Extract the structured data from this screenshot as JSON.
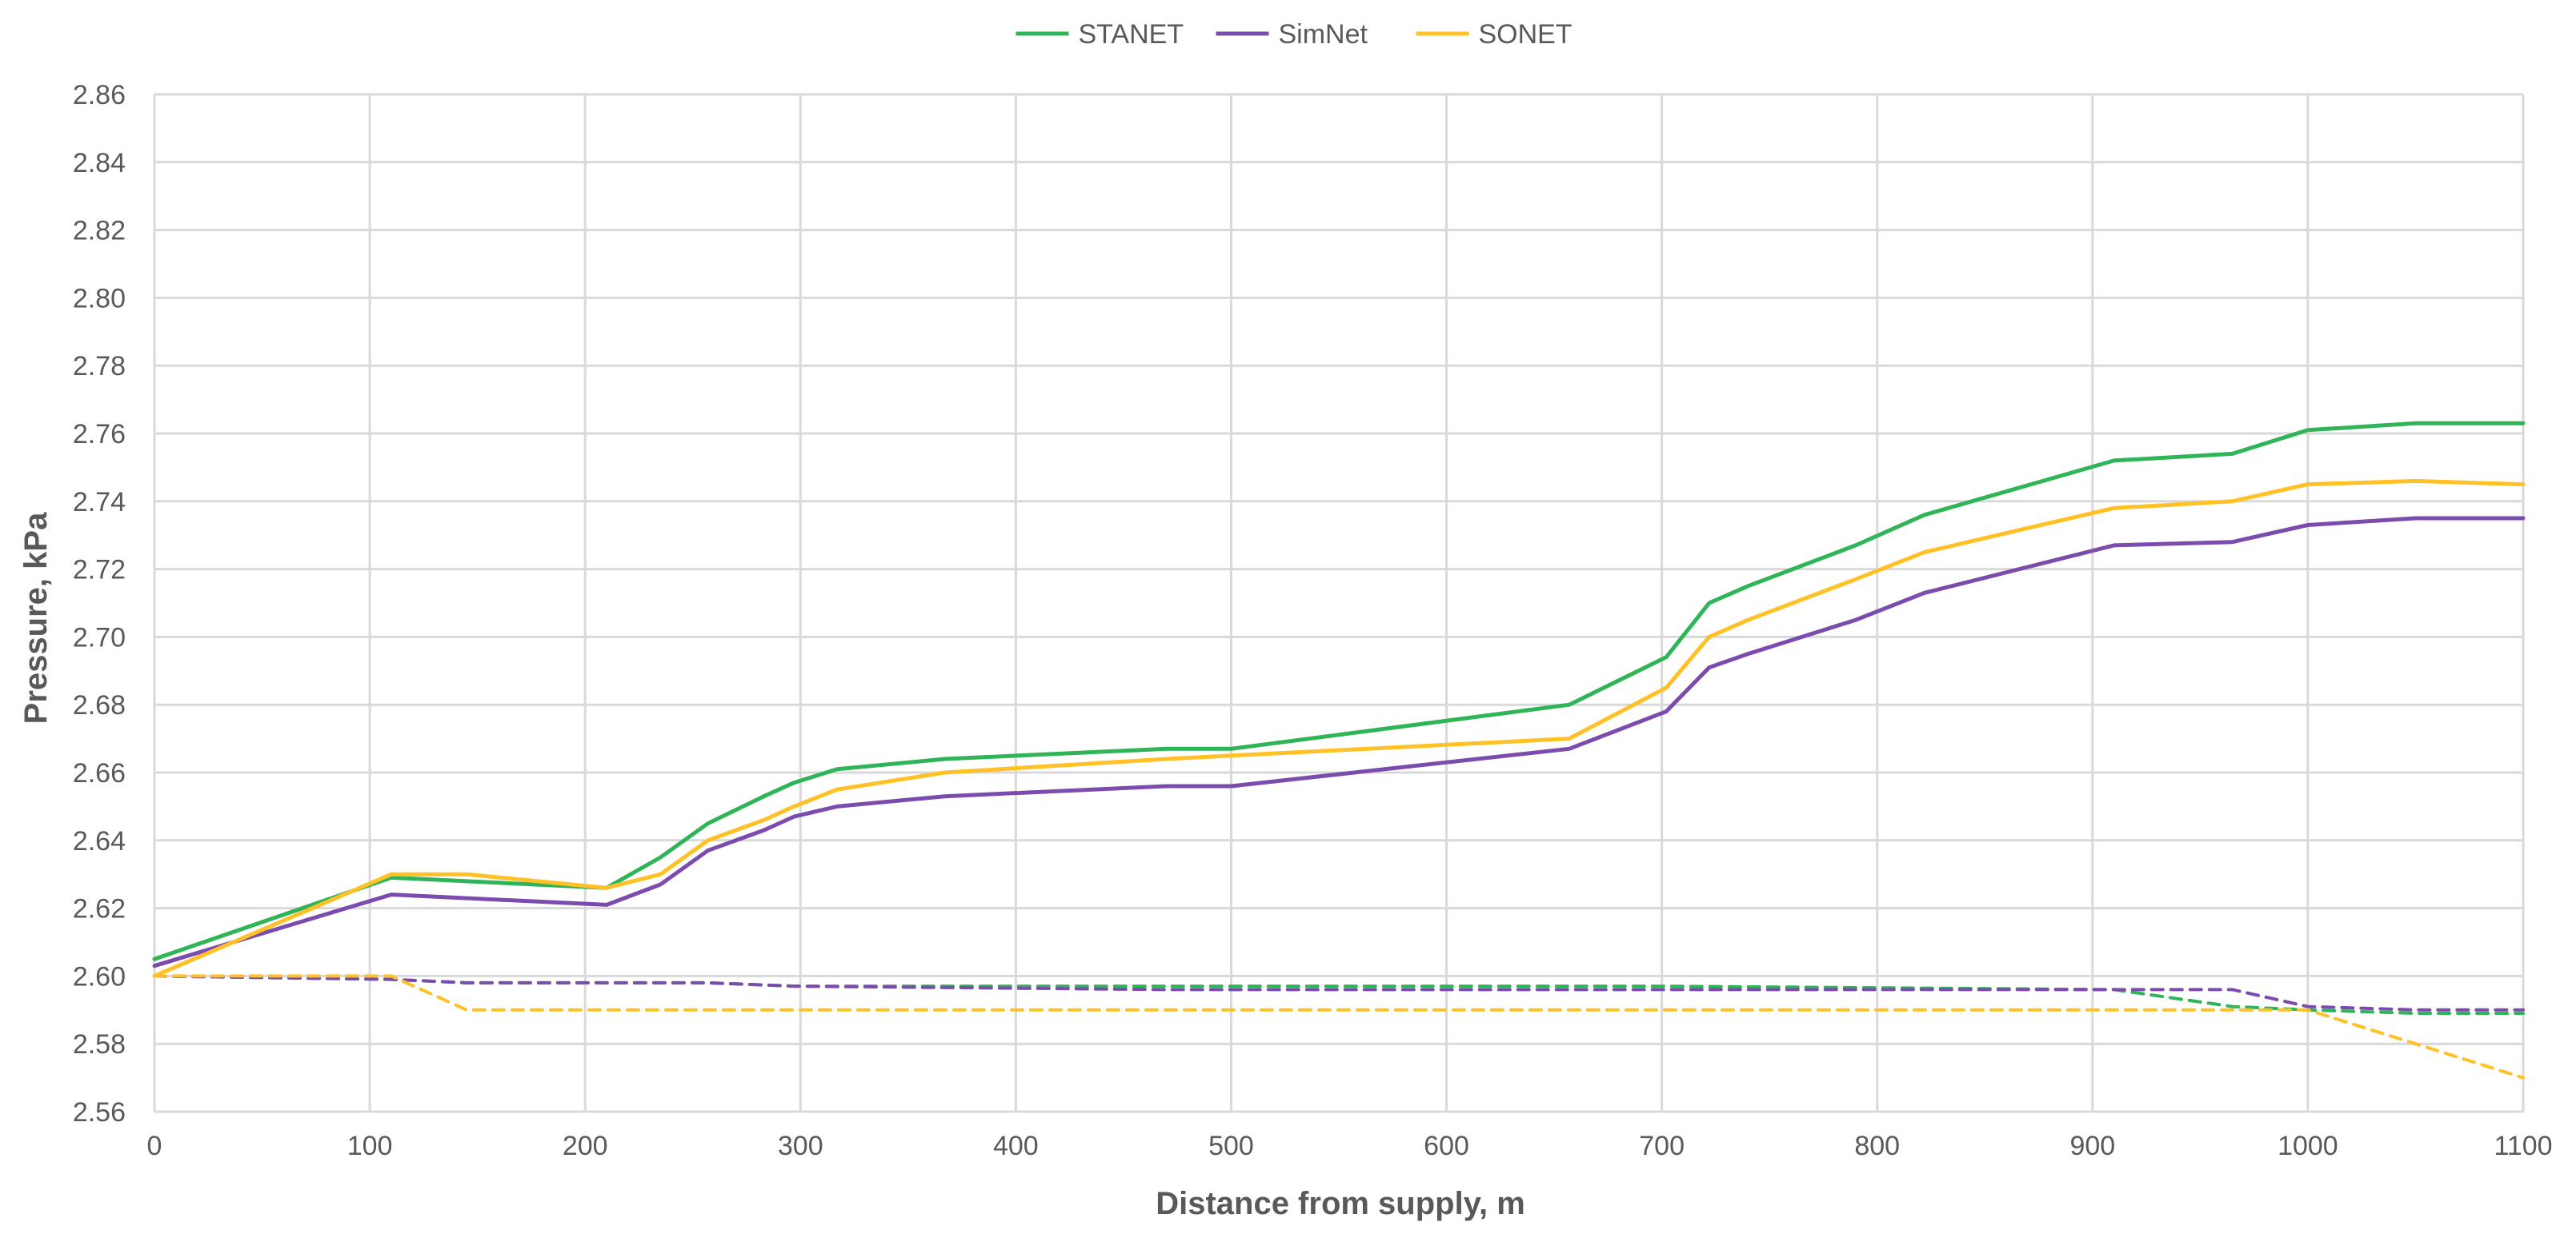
{
  "chart_data": {
    "type": "line",
    "title": "",
    "xlabel": "Distance from supply, m",
    "ylabel": "Pressure, kPa",
    "xlim": [
      0,
      1100
    ],
    "ylim": [
      2.56,
      2.86
    ],
    "x_ticks": [
      "0",
      "100",
      "200",
      "300",
      "400",
      "500",
      "600",
      "700",
      "800",
      "900",
      "1000",
      "1100"
    ],
    "y_ticks": [
      "2.56",
      "2.58",
      "2.60",
      "2.62",
      "2.64",
      "2.66",
      "2.68",
      "2.70",
      "2.72",
      "2.74",
      "2.76",
      "2.78",
      "2.80",
      "2.82",
      "2.84",
      "2.86"
    ],
    "grid": true,
    "legend_position": "top-center",
    "legend": [
      {
        "name": "STANET",
        "color": "#2fb457"
      },
      {
        "name": "SimNet",
        "color": "#7b4bae"
      },
      {
        "name": "SONET",
        "color": "#ffc125"
      }
    ],
    "series": [
      {
        "name": "STANET",
        "style": "solid",
        "color": "#2fb457",
        "points": [
          [
            0,
            2.605
          ],
          [
            110,
            2.629
          ],
          [
            210,
            2.626
          ],
          [
            235,
            2.635
          ],
          [
            257,
            2.645
          ],
          [
            283,
            2.653
          ],
          [
            297,
            2.657
          ],
          [
            317,
            2.661
          ],
          [
            367,
            2.664
          ],
          [
            470,
            2.667
          ],
          [
            500,
            2.667
          ],
          [
            657,
            2.68
          ],
          [
            702,
            2.694
          ],
          [
            722,
            2.71
          ],
          [
            740,
            2.715
          ],
          [
            790,
            2.727
          ],
          [
            822,
            2.736
          ],
          [
            910,
            2.752
          ],
          [
            965,
            2.754
          ],
          [
            1000,
            2.761
          ],
          [
            1050,
            2.763
          ],
          [
            1100,
            2.763
          ]
        ]
      },
      {
        "name": "SimNet",
        "style": "solid",
        "color": "#7b4bae",
        "points": [
          [
            0,
            2.603
          ],
          [
            110,
            2.624
          ],
          [
            210,
            2.621
          ],
          [
            235,
            2.627
          ],
          [
            257,
            2.637
          ],
          [
            283,
            2.643
          ],
          [
            297,
            2.647
          ],
          [
            317,
            2.65
          ],
          [
            367,
            2.653
          ],
          [
            470,
            2.656
          ],
          [
            500,
            2.656
          ],
          [
            657,
            2.667
          ],
          [
            702,
            2.678
          ],
          [
            722,
            2.691
          ],
          [
            740,
            2.695
          ],
          [
            790,
            2.705
          ],
          [
            822,
            2.713
          ],
          [
            910,
            2.727
          ],
          [
            965,
            2.728
          ],
          [
            1000,
            2.733
          ],
          [
            1050,
            2.735
          ],
          [
            1100,
            2.735
          ]
        ]
      },
      {
        "name": "SONET",
        "style": "solid",
        "color": "#ffc125",
        "points": [
          [
            0,
            2.6
          ],
          [
            110,
            2.63
          ],
          [
            145,
            2.63
          ],
          [
            210,
            2.626
          ],
          [
            235,
            2.63
          ],
          [
            257,
            2.64
          ],
          [
            283,
            2.646
          ],
          [
            297,
            2.65
          ],
          [
            317,
            2.655
          ],
          [
            367,
            2.66
          ],
          [
            470,
            2.664
          ],
          [
            500,
            2.665
          ],
          [
            657,
            2.67
          ],
          [
            702,
            2.685
          ],
          [
            722,
            2.7
          ],
          [
            740,
            2.705
          ],
          [
            790,
            2.717
          ],
          [
            822,
            2.725
          ],
          [
            910,
            2.738
          ],
          [
            965,
            2.74
          ],
          [
            1000,
            2.745
          ],
          [
            1050,
            2.746
          ],
          [
            1100,
            2.745
          ]
        ]
      },
      {
        "name": "STANET",
        "style": "dashed",
        "color": "#2fb457",
        "points": [
          [
            0,
            2.6
          ],
          [
            110,
            2.599
          ],
          [
            145,
            2.598
          ],
          [
            210,
            2.598
          ],
          [
            257,
            2.598
          ],
          [
            297,
            2.597
          ],
          [
            500,
            2.597
          ],
          [
            700,
            2.597
          ],
          [
            910,
            2.596
          ],
          [
            965,
            2.591
          ],
          [
            1000,
            2.59
          ],
          [
            1050,
            2.589
          ],
          [
            1100,
            2.589
          ]
        ]
      },
      {
        "name": "SimNet",
        "style": "dashed",
        "color": "#7b4bae",
        "points": [
          [
            0,
            2.6
          ],
          [
            110,
            2.599
          ],
          [
            145,
            2.598
          ],
          [
            210,
            2.598
          ],
          [
            257,
            2.598
          ],
          [
            297,
            2.597
          ],
          [
            470,
            2.596
          ],
          [
            700,
            2.596
          ],
          [
            910,
            2.596
          ],
          [
            965,
            2.596
          ],
          [
            1000,
            2.591
          ],
          [
            1050,
            2.59
          ],
          [
            1100,
            2.59
          ]
        ]
      },
      {
        "name": "SONET",
        "style": "dashed",
        "color": "#ffc125",
        "points": [
          [
            0,
            2.6
          ],
          [
            110,
            2.6
          ],
          [
            145,
            2.59
          ],
          [
            500,
            2.59
          ],
          [
            1000,
            2.59
          ],
          [
            1050,
            2.58
          ],
          [
            1100,
            2.57
          ]
        ]
      }
    ]
  }
}
